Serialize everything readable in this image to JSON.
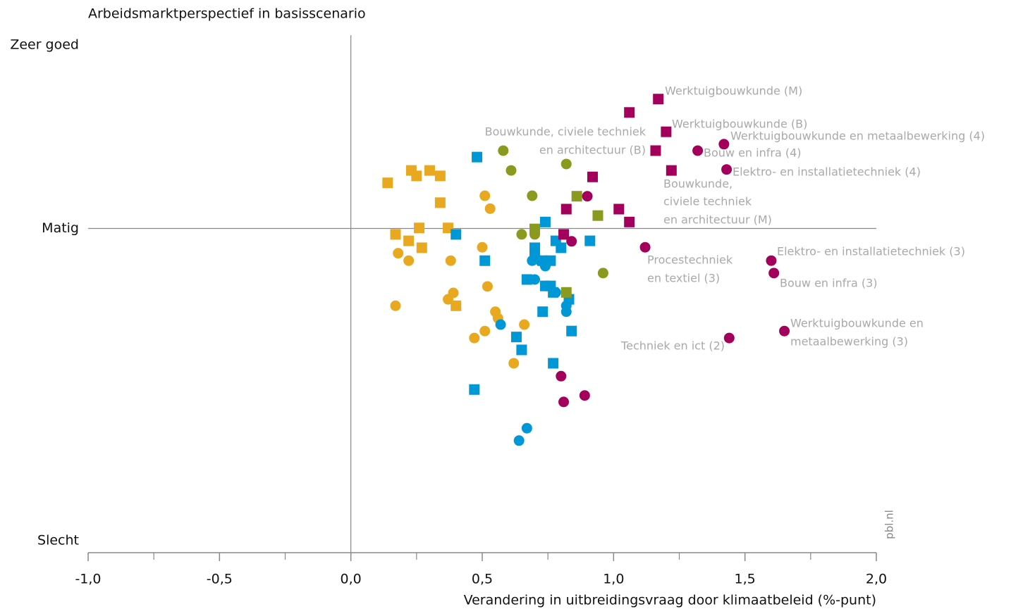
{
  "chart_data": {
    "type": "scatter",
    "title": "Arbeidsmarktperspectief in basisscenario",
    "x_label": "Verandering in uitbreidingsvraag door klimaatbeleid (%-punt)",
    "source": "pbl.nl",
    "xlim": [
      -1,
      2
    ],
    "xticks": [
      {
        "value": -1,
        "label": "-1,0"
      },
      {
        "value": -0.5,
        "label": "-0,5"
      },
      {
        "value": 0,
        "label": "0,0"
      },
      {
        "value": 0.5,
        "label": "0,5"
      },
      {
        "value": 1,
        "label": "1,0"
      },
      {
        "value": 1.5,
        "label": "1,5"
      },
      {
        "value": 2,
        "label": "2,0"
      }
    ],
    "xminorticks": [
      -0.75,
      -0.25,
      0.25,
      0.75,
      1.25,
      1.75
    ],
    "ylim": [
      0,
      100
    ],
    "yticks": [
      {
        "value": 0,
        "label": "Slecht"
      },
      {
        "value": 63,
        "label": "Matig"
      },
      {
        "value": 100,
        "label": "Zeer goed"
      }
    ],
    "series": [
      {
        "color": "#e8a820",
        "marker": "square",
        "x": [
          0.14,
          0.23,
          0.25,
          0.3,
          0.34,
          0.34,
          0.17,
          0.26,
          0.37,
          0.22,
          0.27,
          0.4
        ],
        "y": [
          72.2,
          74.7,
          73.6,
          74.7,
          73.6,
          68.2,
          61.8,
          63.1,
          63.1,
          60.5,
          59.1,
          47.4
        ]
      },
      {
        "color": "#e8a820",
        "marker": "circle",
        "x": [
          0.51,
          0.53,
          0.5,
          0.18,
          0.22,
          0.38,
          0.39,
          0.37,
          0.17,
          0.52,
          0.55,
          0.56,
          0.66,
          0.51,
          0.47,
          0.62
        ],
        "y": [
          69.6,
          67.0,
          59.2,
          58.0,
          56.5,
          56.5,
          50.0,
          48.7,
          47.4,
          51.3,
          46.2,
          44.9,
          43.6,
          42.3,
          40.9,
          35.8
        ]
      },
      {
        "color": "#0097d7",
        "marker": "square",
        "x": [
          0.48,
          0.74,
          0.4,
          0.78,
          0.8,
          0.91,
          0.7,
          0.51,
          0.7,
          0.73,
          0.76,
          0.67,
          0.77,
          0.74,
          0.76,
          0.83,
          0.73,
          0.84,
          0.63,
          0.65,
          0.77,
          0.47
        ],
        "y": [
          77.4,
          64.3,
          61.8,
          60.5,
          59.1,
          60.5,
          59.1,
          56.5,
          58.0,
          56.5,
          56.5,
          52.7,
          50.1,
          51.4,
          51.4,
          48.7,
          46.2,
          42.3,
          41.1,
          38.5,
          35.8,
          30.5
        ]
      },
      {
        "color": "#0097d7",
        "marker": "circle",
        "x": [
          0.69,
          0.72,
          0.74,
          0.7,
          0.78,
          0.82,
          0.82,
          0.57,
          0.67,
          0.64
        ],
        "y": [
          56.5,
          56.5,
          55.4,
          52.7,
          50.1,
          47.4,
          46.2,
          43.6,
          22.7,
          20.2
        ]
      },
      {
        "color": "#8a9a1e",
        "marker": "circle",
        "x": [
          0.58,
          0.61,
          0.82,
          0.69,
          0.65,
          0.7,
          0.96
        ],
        "y": [
          78.7,
          74.7,
          76.0,
          69.6,
          61.8,
          61.8,
          54.0
        ]
      },
      {
        "color": "#8a9a1e",
        "marker": "square",
        "x": [
          0.86,
          0.94,
          0.7,
          0.82
        ],
        "y": [
          69.5,
          65.6,
          62.9,
          50.1
        ]
      },
      {
        "color": "#a3005c",
        "marker": "square",
        "x": [
          1.17,
          1.06,
          1.2,
          1.16,
          1.22,
          0.92,
          0.82,
          1.02,
          1.06,
          0.81
        ],
        "y": [
          89.1,
          86.4,
          82.5,
          78.7,
          74.7,
          73.4,
          66.9,
          66.9,
          64.3,
          61.8
        ]
      },
      {
        "color": "#a3005c",
        "marker": "circle",
        "x": [
          1.32,
          1.42,
          1.43,
          0.9,
          0.84,
          1.12,
          1.6,
          1.61,
          1.65,
          1.44,
          0.8,
          0.89,
          0.81
        ],
        "y": [
          78.7,
          80.0,
          74.9,
          69.5,
          60.4,
          59.2,
          56.5,
          54.0,
          42.3,
          40.9,
          33.2,
          29.3,
          28.0
        ]
      }
    ],
    "annotations": [
      "Werktuigbouwkunde (M)",
      "Werktuigbouwkunde (B)",
      "Bouwkunde, civiele techniek",
      "en architectuur (B)",
      "Werktuigbouwkunde en metaalbewerking (4)",
      "Bouw en infra (4)",
      "Elektro- en installatietechniek (4)",
      "Bouwkunde,",
      "civiele techniek",
      "en architectuur (M)",
      "Elektro- en installatietechniek (3)",
      "Procestechniek",
      "en textiel (3)",
      "Bouw en infra (3)",
      "Werktuigbouwkunde en",
      "metaalbewerking (3)",
      "Techniek en ict (2)"
    ]
  }
}
